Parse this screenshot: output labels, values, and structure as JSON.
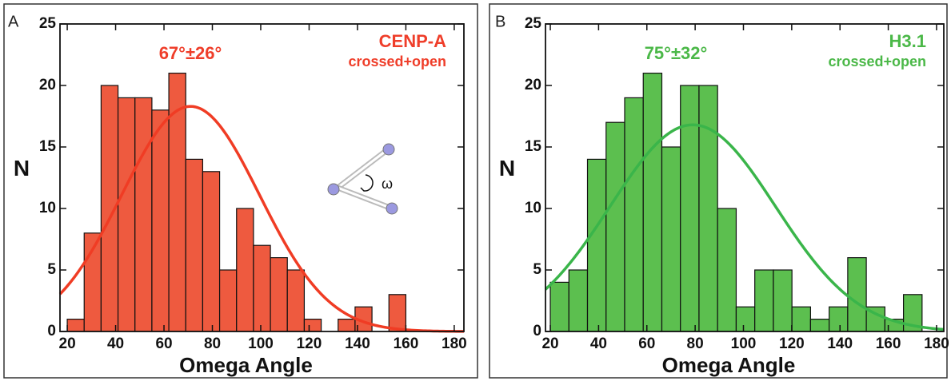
{
  "chart_data": [
    {
      "type": "histogram",
      "panel_label": "A",
      "title": "CENP-A",
      "subtitle": "crossed+open",
      "annotation": "67°±26°",
      "xlabel": "Omega Angle",
      "ylabel": "N",
      "inset_label": "ω",
      "bins": [
        20,
        27,
        34,
        41,
        48,
        55,
        62,
        69,
        76,
        83,
        90,
        97,
        104,
        111,
        118,
        125,
        132,
        139,
        146,
        153,
        160
      ],
      "counts": [
        1,
        8,
        20,
        19,
        19,
        18,
        21,
        14,
        13,
        5,
        10,
        7,
        6,
        5,
        1,
        0,
        1,
        2,
        0,
        3
      ],
      "color": "#ee5a3f",
      "title_color": "#ef3e2a",
      "fit": {
        "center": 71,
        "sigma": 28.5,
        "peak": 18.3,
        "color": "#f03c24"
      },
      "xlim": [
        17,
        184
      ],
      "xticks": [
        20,
        40,
        60,
        80,
        100,
        120,
        140,
        160,
        180
      ],
      "ylim": [
        0,
        25
      ],
      "yticks": [
        0,
        5,
        10,
        15,
        20,
        25
      ]
    },
    {
      "type": "histogram",
      "panel_label": "B",
      "title": "H3.1",
      "subtitle": "crossed+open",
      "annotation": "75°±32°",
      "xlabel": "Omega Angle",
      "ylabel": "N",
      "bins": [
        20,
        27.7,
        35.4,
        43.1,
        50.8,
        58.5,
        66.2,
        73.9,
        81.6,
        89.3,
        97,
        104.7,
        112.4,
        120.1,
        127.8,
        135.5,
        143.2,
        150.9,
        158.6,
        166.3,
        174
      ],
      "counts": [
        4,
        5,
        14,
        17,
        19,
        21,
        15,
        20,
        20,
        10,
        2,
        5,
        5,
        2,
        1,
        2,
        6,
        2,
        1,
        3
      ],
      "color": "#5cbf4f",
      "title_color": "#4bb848",
      "fit": {
        "center": 79,
        "sigma": 34.2,
        "peak": 16.8,
        "color": "#3ab54a"
      },
      "xlim": [
        18,
        183
      ],
      "xticks": [
        20,
        40,
        60,
        80,
        100,
        120,
        140,
        160,
        180
      ],
      "ylim": [
        0,
        25
      ],
      "yticks": [
        0,
        5,
        10,
        15,
        20,
        25
      ]
    }
  ]
}
